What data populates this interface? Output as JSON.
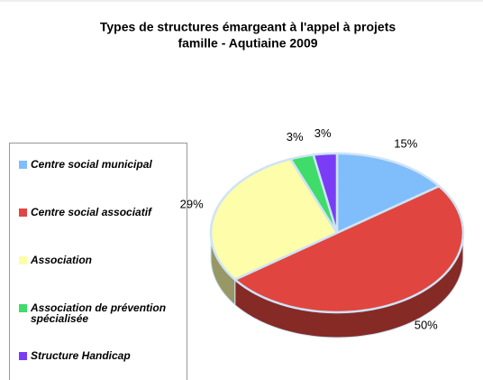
{
  "chart_data": {
    "type": "pie3d",
    "title": [
      "Types de structures émargeant à l'appel à projets",
      "famille - Aqutiaine 2009"
    ],
    "categories": [
      "Centre social municipal",
      "Centre social associatif",
      "Association",
      "Association de prévention spécialisée",
      "Structure Handicap"
    ],
    "values": [
      15,
      50,
      29,
      3,
      3
    ],
    "value_labels": [
      "15%",
      "50%",
      "29%",
      "3%",
      "3%"
    ],
    "colors": [
      "#80bdfb",
      "#e0463f",
      "#fdfdaa",
      "#3fdc6a",
      "#7a3cf5"
    ],
    "legend": "left"
  }
}
